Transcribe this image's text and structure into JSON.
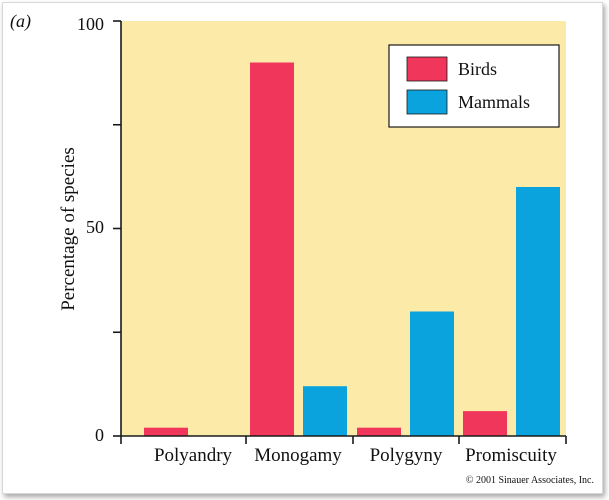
{
  "panel_label": "(a)",
  "copyright": "© 2001 Sinauer Associates, Inc.",
  "colors": {
    "background": "#fbeaa8",
    "birds": "#f0365a",
    "mammals": "#0aa3dd",
    "axis": "#1a1a1a"
  },
  "chart_data": {
    "type": "bar",
    "categories": [
      "Polyandry",
      "Monogamy",
      "Polygyny",
      "Promiscuity"
    ],
    "series": [
      {
        "name": "Birds",
        "values": [
          2,
          90,
          2,
          6
        ]
      },
      {
        "name": "Mammals",
        "values": [
          0,
          12,
          30,
          60
        ]
      }
    ],
    "title": "",
    "xlabel": "",
    "ylabel": "Percentage of species",
    "ylim": [
      0,
      100
    ],
    "yticks": [
      "0",
      "50",
      "100"
    ],
    "grid": false,
    "legend_position": "top-right"
  }
}
